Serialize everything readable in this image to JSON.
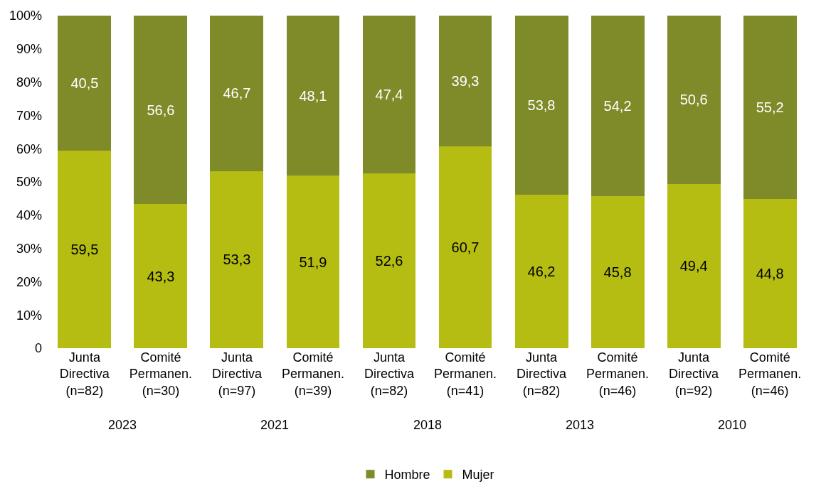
{
  "chart_data": {
    "type": "bar",
    "stacked": true,
    "categories": [
      "Junta\nDirectiva\n(n=82)",
      "Comité\nPermanen.\n(n=30)",
      "Junta\nDirectiva\n(n=97)",
      "Comité\nPermanen.\n(n=39)",
      "Junta\nDirectiva\n(n=82)",
      "Comité\nPermanen.\n(n=41)",
      "Junta\nDirectiva\n(n=82)",
      "Comité\nPermanen.\n(n=46)",
      "Junta\nDirectiva\n(n=92)",
      "Comité\nPermanen.\n(n=46)"
    ],
    "series": [
      {
        "name": "Mujer",
        "color": "#b5bd12",
        "values": [
          59.5,
          43.3,
          53.3,
          51.9,
          52.6,
          60.7,
          46.2,
          45.8,
          49.4,
          44.8
        ],
        "value_labels": [
          "59,5",
          "43,3",
          "53,3",
          "51,9",
          "52,6",
          "60,7",
          "46,2",
          "45,8",
          "49,4",
          "44,8"
        ]
      },
      {
        "name": "Hombre",
        "color": "#7f8a29",
        "values": [
          40.5,
          56.6,
          46.7,
          48.1,
          47.4,
          39.3,
          53.8,
          54.2,
          50.6,
          55.2
        ],
        "value_labels": [
          "40,5",
          "56,6",
          "46,7",
          "48,1",
          "47,4",
          "39,3",
          "53,8",
          "54,2",
          "50,6",
          "55,2"
        ]
      }
    ],
    "annotations": [
      "2023",
      "2021",
      "2018",
      "2013",
      "2010"
    ],
    "ylim": [
      0,
      100
    ],
    "yticks": [
      0,
      {
        "value": 10,
        "label": "10%"
      },
      {
        "value": 20,
        "label": "20%"
      },
      {
        "value": 30,
        "label": "30%"
      },
      {
        "value": 40,
        "label": "40%"
      },
      {
        "value": 50,
        "label": "50%"
      },
      {
        "value": 60,
        "label": "60%"
      },
      {
        "value": 70,
        "label": "70%"
      },
      {
        "value": 80,
        "label": "80%"
      },
      {
        "value": 90,
        "label": "90%"
      },
      {
        "value": 100,
        "label": "100%"
      }
    ],
    "legend": "bottom"
  }
}
